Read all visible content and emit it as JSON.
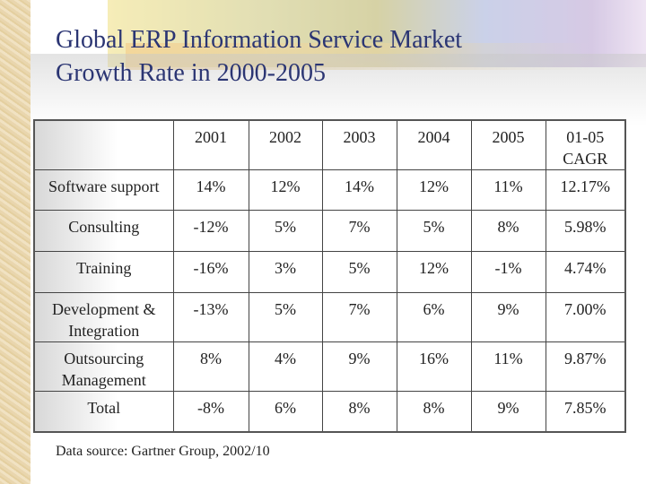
{
  "title": {
    "line1": "Global ERP Information Service Market",
    "line2": "Growth Rate in 2000-2005"
  },
  "table": {
    "headers": [
      "",
      "2001",
      "2002",
      "2003",
      "2004",
      "2005",
      "01-05 CAGR"
    ],
    "rows": [
      {
        "label": "Software support",
        "values": [
          "14%",
          "12%",
          "14%",
          "12%",
          "11%",
          "12.17%"
        ]
      },
      {
        "label": "Consulting",
        "values": [
          "-12%",
          "5%",
          "7%",
          "5%",
          "8%",
          "5.98%"
        ]
      },
      {
        "label": "Training",
        "values": [
          "-16%",
          "3%",
          "5%",
          "12%",
          "-1%",
          "4.74%"
        ]
      },
      {
        "label": "Development & Integration",
        "values": [
          "-13%",
          "5%",
          "7%",
          "6%",
          "9%",
          "7.00%"
        ]
      },
      {
        "label": "Outsourcing Management",
        "values": [
          "8%",
          "4%",
          "9%",
          "16%",
          "11%",
          "9.87%"
        ]
      },
      {
        "label": "Total",
        "values": [
          "-8%",
          "6%",
          "8%",
          "8%",
          "9%",
          "7.85%"
        ]
      }
    ]
  },
  "source": "Data source: Gartner Group, 2002/10",
  "colors": {
    "title": "#2b3573"
  }
}
